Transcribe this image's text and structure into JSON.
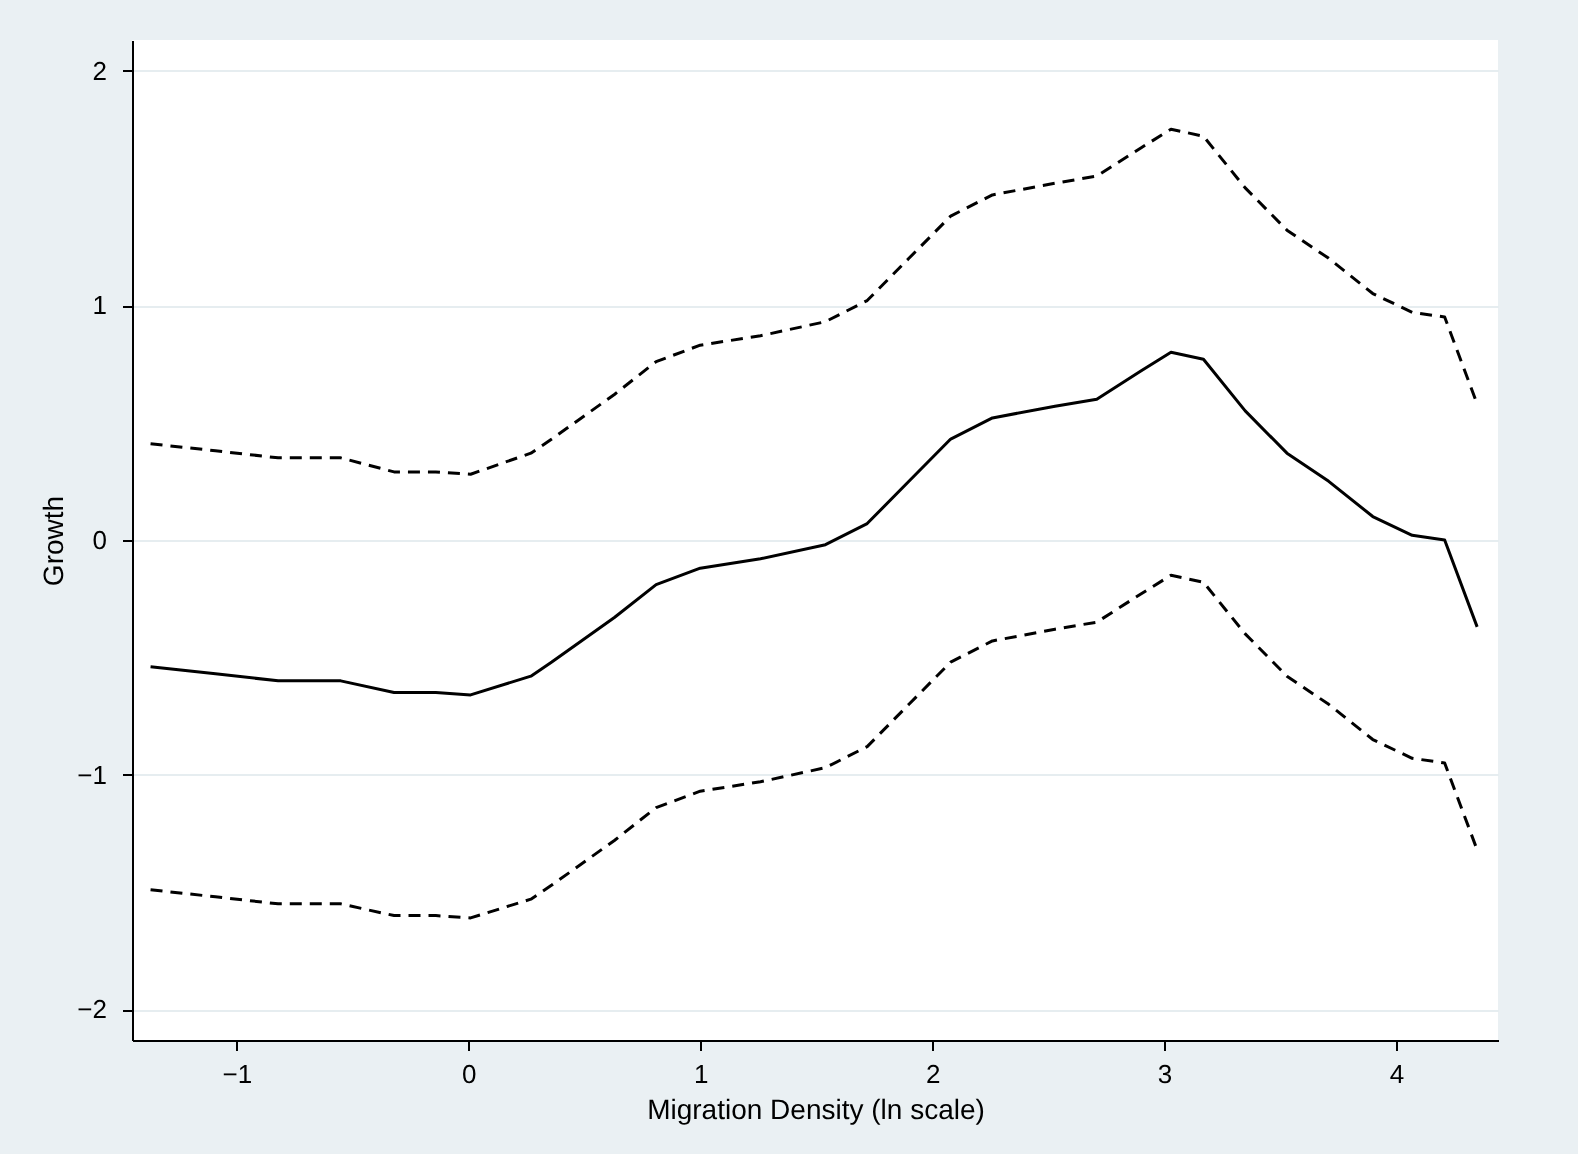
{
  "chart_data": {
    "type": "line",
    "xlabel": "Migration Density (ln scale)",
    "ylabel": "Growth",
    "x": [
      -1.37,
      -1.09,
      -0.82,
      -0.55,
      -0.32,
      -0.14,
      0.01,
      0.27,
      0.36,
      0.63,
      0.81,
      1.0,
      1.26,
      1.54,
      1.72,
      1.9,
      2.08,
      2.26,
      2.53,
      2.71,
      2.9,
      3.03,
      3.17,
      3.35,
      3.53,
      3.71,
      3.9,
      4.07,
      4.21,
      4.35
    ],
    "series": [
      {
        "color": "#000000",
        "line_style": "dashed",
        "values": [
          0.41,
          0.38,
          0.35,
          0.35,
          0.29,
          0.29,
          0.28,
          0.37,
          0.43,
          0.62,
          0.76,
          0.83,
          0.87,
          0.93,
          1.02,
          1.2,
          1.38,
          1.47,
          1.52,
          1.55,
          1.67,
          1.75,
          1.72,
          1.5,
          1.32,
          1.2,
          1.05,
          0.97,
          0.95,
          0.58
        ]
      },
      {
        "color": "#000000",
        "line_style": "solid",
        "values": [
          -0.54,
          -0.57,
          -0.6,
          -0.6,
          -0.65,
          -0.65,
          -0.66,
          -0.58,
          -0.52,
          -0.33,
          -0.19,
          -0.12,
          -0.08,
          -0.02,
          0.07,
          0.25,
          0.43,
          0.52,
          0.57,
          0.6,
          0.72,
          0.8,
          0.77,
          0.55,
          0.37,
          0.25,
          0.1,
          0.02,
          0.0,
          -0.37
        ]
      },
      {
        "color": "#000000",
        "line_style": "dashed",
        "values": [
          -1.49,
          -1.52,
          -1.55,
          -1.55,
          -1.6,
          -1.6,
          -1.61,
          -1.53,
          -1.47,
          -1.28,
          -1.14,
          -1.07,
          -1.03,
          -0.97,
          -0.88,
          -0.7,
          -0.52,
          -0.43,
          -0.38,
          -0.35,
          -0.23,
          -0.15,
          -0.18,
          -0.4,
          -0.58,
          -0.7,
          -0.85,
          -0.93,
          -0.95,
          -1.32
        ]
      }
    ],
    "xlim": [
      -1.45,
      4.44
    ],
    "xticks": [
      -1,
      0,
      1,
      2,
      3,
      4
    ],
    "ylim": [
      -2.13,
      2.13
    ],
    "yticks": [
      -2,
      -1,
      0,
      1,
      2
    ],
    "grid": "y",
    "legend": false
  }
}
